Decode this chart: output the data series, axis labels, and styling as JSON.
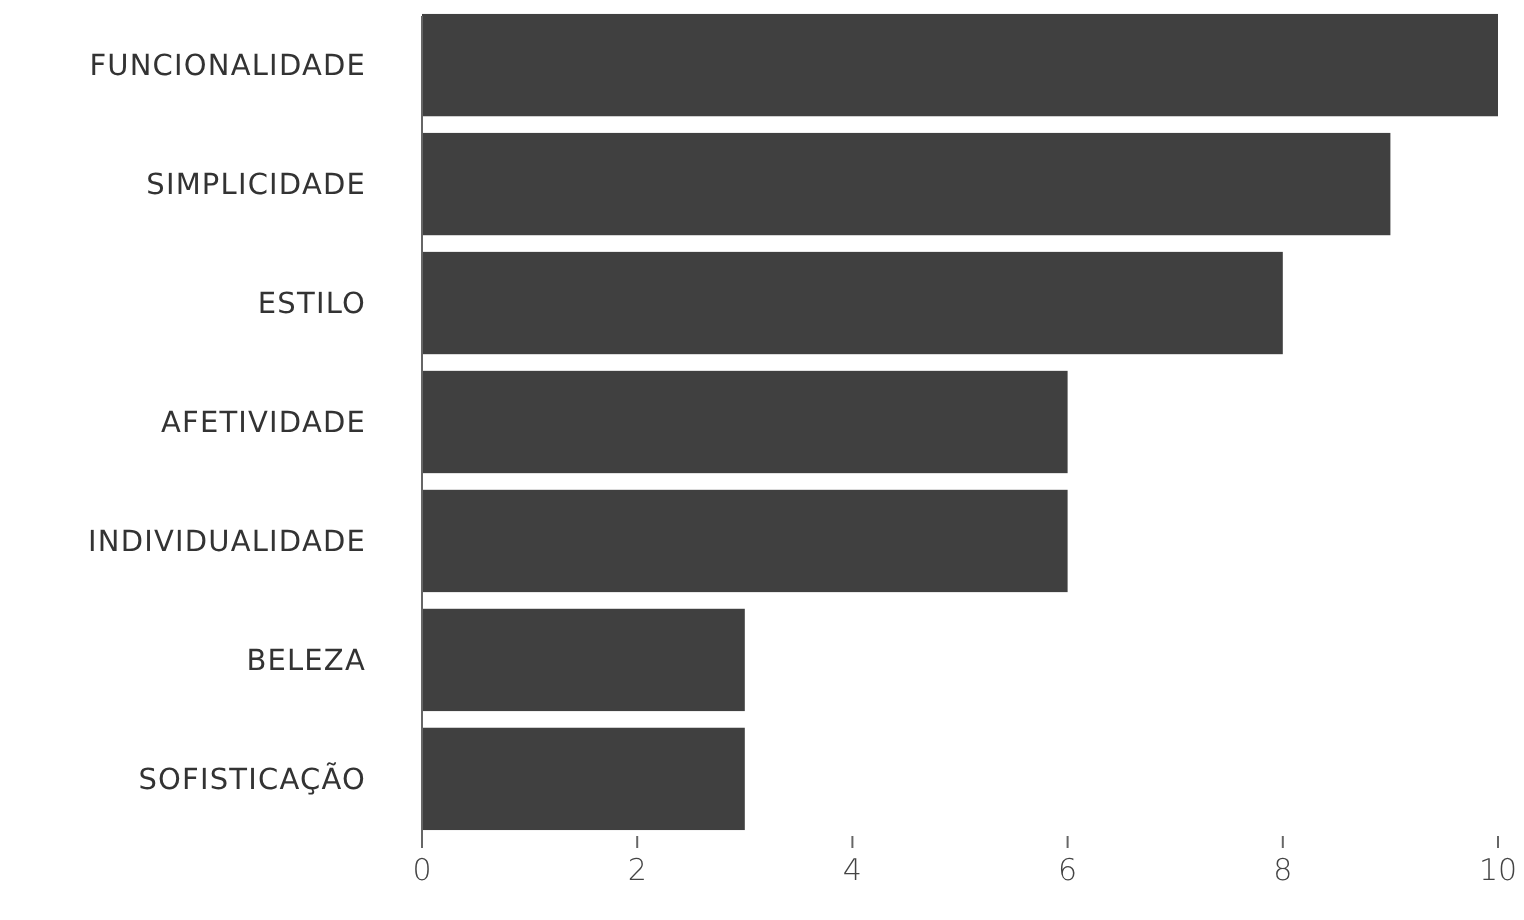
{
  "chart_data": {
    "type": "bar",
    "orientation": "horizontal",
    "categories": [
      "FUNCIONALIDADE",
      "SIMPLICIDADE",
      "ESTILO",
      "AFETIVIDADE",
      "INDIVIDUALIDADE",
      "BELEZA",
      "SOFISTICAÇÃO"
    ],
    "values": [
      10,
      9,
      8,
      6,
      6,
      3,
      3
    ],
    "color": "#404040",
    "xlim": [
      0,
      10
    ],
    "xticks": [
      0,
      2,
      4,
      6,
      8,
      10
    ],
    "grid": false
  }
}
